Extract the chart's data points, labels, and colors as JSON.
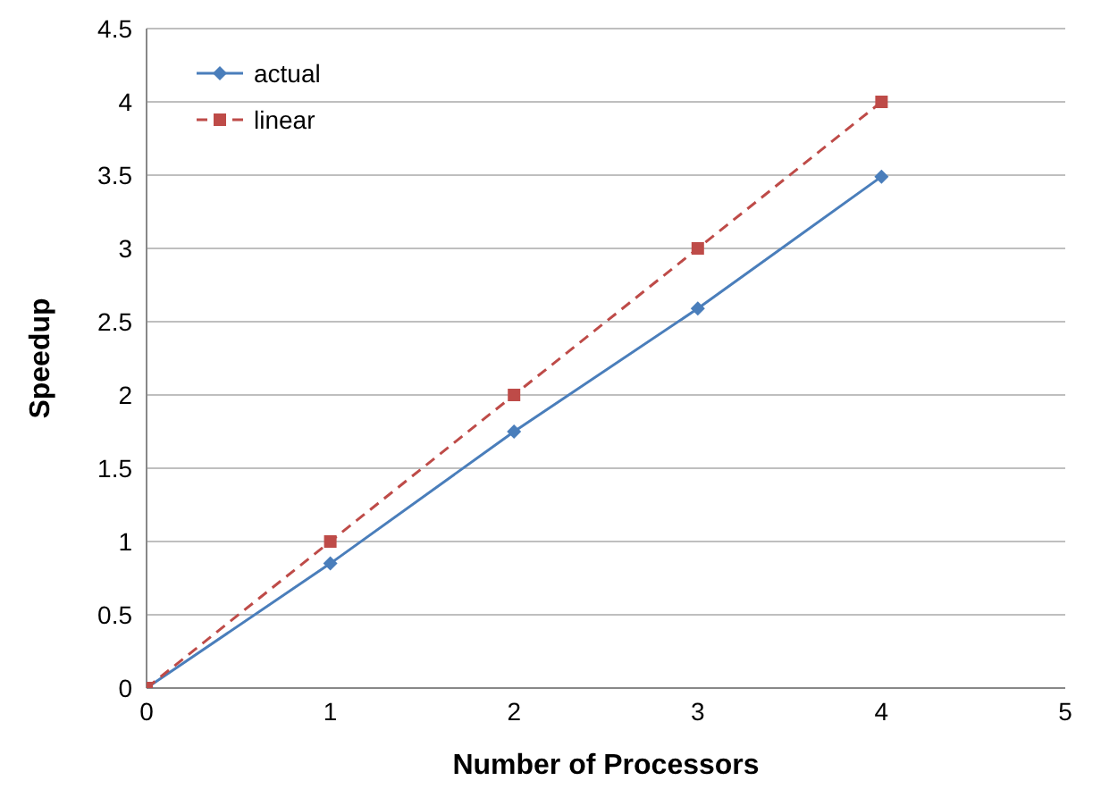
{
  "chart_data": {
    "type": "line",
    "xlabel": "Number of Processors",
    "ylabel": "Speedup",
    "x": [
      0,
      1,
      2,
      3,
      4
    ],
    "series": [
      {
        "name": "actual",
        "color": "#4a7ebb",
        "values": [
          0,
          0.85,
          1.75,
          2.59,
          3.49
        ],
        "marker": "diamond",
        "line_style": "solid"
      },
      {
        "name": "linear",
        "color": "#be4b48",
        "values": [
          0,
          1,
          2,
          3,
          4
        ],
        "marker": "square",
        "line_style": "dashed"
      }
    ],
    "xlim": [
      0,
      5
    ],
    "xticks": [
      0,
      1,
      2,
      3,
      4,
      5
    ],
    "ylim": [
      0,
      4.5
    ],
    "yticks": [
      0,
      0.5,
      1,
      1.5,
      2,
      2.5,
      3,
      3.5,
      4,
      4.5
    ],
    "grid": "y",
    "legend": "top left"
  }
}
